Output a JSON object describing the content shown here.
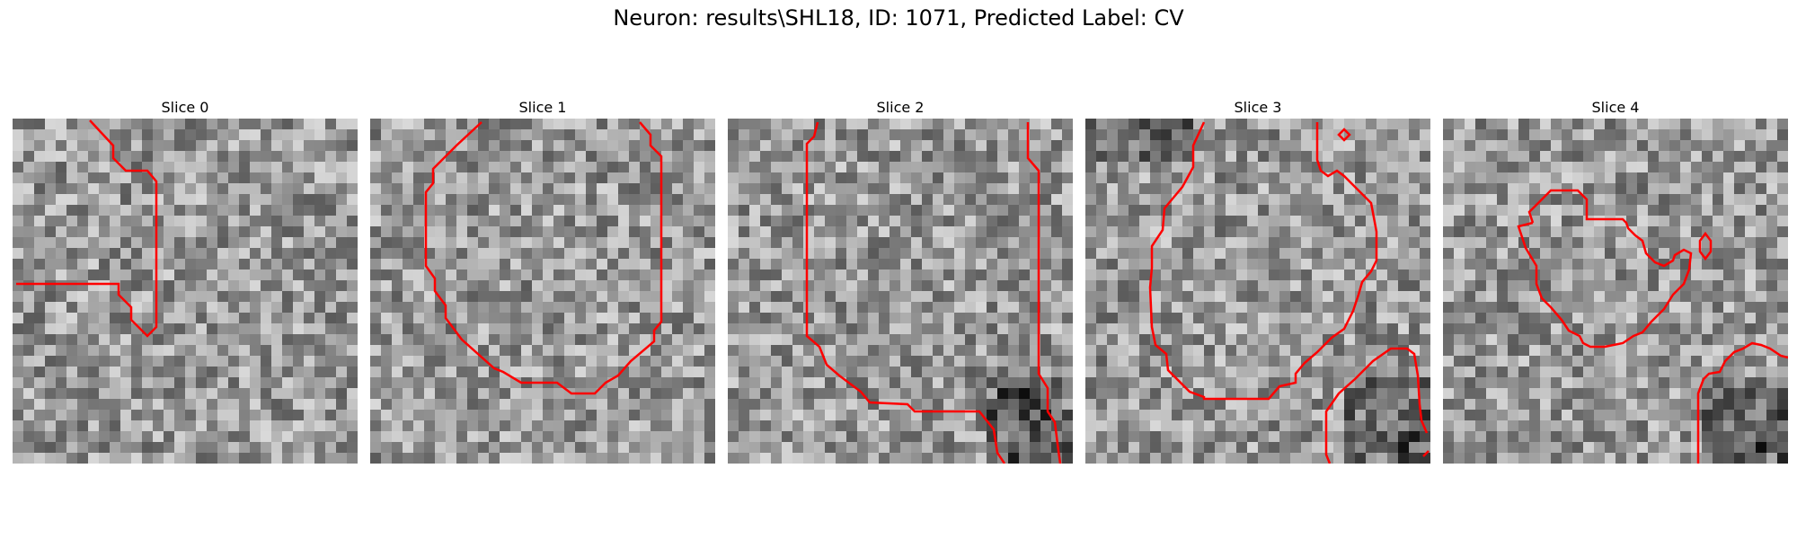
{
  "title": "Neuron: results\\SHL18, ID: 1071, Predicted Label: CV",
  "slices": [
    {
      "label": "Slice 0"
    },
    {
      "label": "Slice 1"
    },
    {
      "label": "Slice 2"
    },
    {
      "label": "Slice 3"
    },
    {
      "label": "Slice 4"
    }
  ],
  "colors": {
    "contour": "#ff0000",
    "background": "#ffffff"
  }
}
